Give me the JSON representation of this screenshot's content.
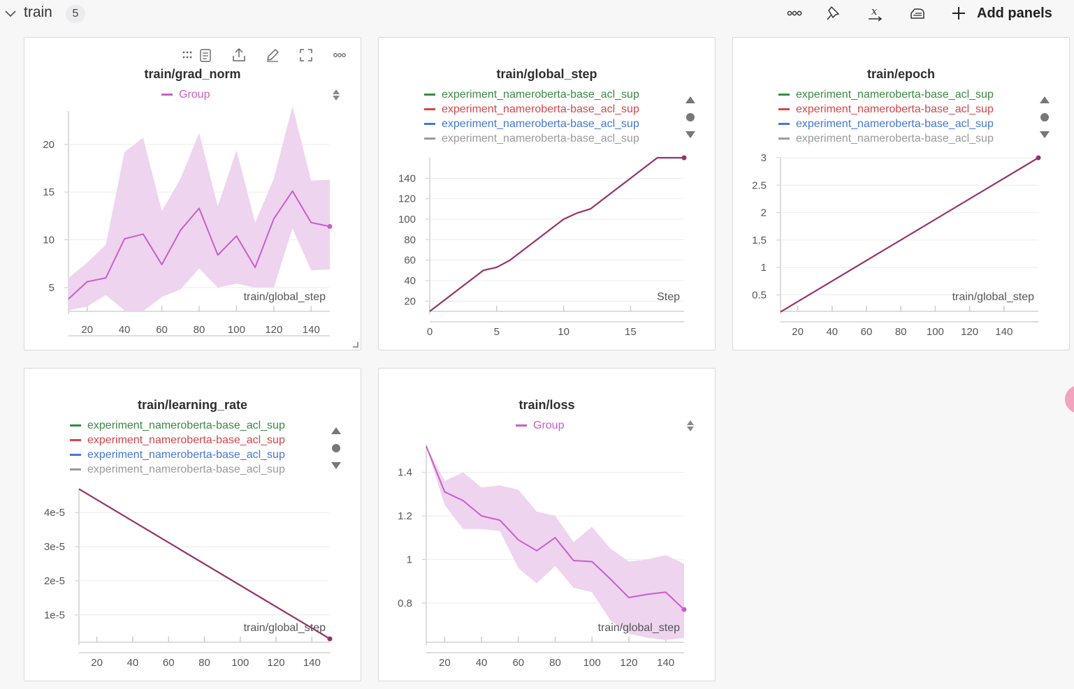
{
  "section": {
    "title": "train",
    "count": "5",
    "add_panels_label": "Add panels"
  },
  "icons": {
    "collapse": "chevron-down-icon",
    "toolbar": [
      "more-options-icon",
      "pin-icon",
      "x-variable-icon",
      "clean-icon",
      "plus-icon"
    ],
    "panel_tools": [
      "drag-handle-icon",
      "clipboard-icon",
      "share-icon",
      "edit-icon",
      "fullscreen-icon",
      "more-options-icon"
    ]
  },
  "colors": {
    "group": "#c95ec9",
    "group_band": "#eed4ef",
    "run_line": "#95336a",
    "legend_green": "#3a8a44",
    "legend_red": "#d6454b",
    "legend_blue": "#4477d6",
    "legend_gray": "#9a9a9a"
  },
  "legend_runs": [
    {
      "label": "experiment_nameroberta-base_acl_sup",
      "color": "#3a8a44"
    },
    {
      "label": "experiment_nameroberta-base_acl_sup",
      "color": "#d6454b"
    },
    {
      "label": "experiment_nameroberta-base_acl_sup",
      "color": "#4477d6"
    },
    {
      "label": "experiment_nameroberta-base_acl_sup",
      "color": "#9a9a9a"
    }
  ],
  "panels": [
    {
      "title": "train/grad_norm",
      "legend": [
        "Group"
      ]
    },
    {
      "title": "train/global_step",
      "legend": [
        "experiment_nameroberta-base_acl_sup",
        "experiment_nameroberta-base_acl_sup",
        "experiment_nameroberta-base_acl_sup",
        "experiment_nameroberta-base_acl_sup"
      ]
    },
    {
      "title": "train/epoch",
      "legend": [
        "experiment_nameroberta-base_acl_sup",
        "experiment_nameroberta-base_acl_sup",
        "experiment_nameroberta-base_acl_sup",
        "experiment_nameroberta-base_acl_sup"
      ]
    },
    {
      "title": "train/learning_rate",
      "legend": [
        "experiment_nameroberta-base_acl_sup",
        "experiment_nameroberta-base_acl_sup",
        "experiment_nameroberta-base_acl_sup",
        "experiment_nameroberta-base_acl_sup"
      ]
    },
    {
      "title": "train/loss",
      "legend": [
        "Group"
      ]
    }
  ],
  "chart_data": [
    {
      "type": "line",
      "title": "train/grad_norm",
      "xlabel": "train/global_step",
      "xlim": [
        10,
        150
      ],
      "ylim": [
        2.5,
        23.5
      ],
      "xticks": [
        20,
        40,
        60,
        80,
        100,
        120,
        140
      ],
      "yticks": [
        5,
        10,
        15,
        20
      ],
      "ytick_labels": [
        "5",
        "10",
        "15",
        "20"
      ],
      "band": true,
      "series": [
        {
          "name": "Group",
          "x": [
            10,
            20,
            30,
            40,
            50,
            60,
            70,
            80,
            90,
            100,
            110,
            120,
            130,
            140,
            150
          ],
          "y": [
            3.8,
            5.6,
            6.0,
            10.1,
            10.6,
            7.4,
            11.0,
            13.3,
            8.4,
            10.4,
            7.1,
            12.2,
            15.1,
            11.8,
            11.4
          ],
          "upper": [
            6.0,
            7.6,
            9.5,
            19.2,
            20.7,
            13.0,
            16.4,
            21.2,
            13.5,
            19.4,
            11.8,
            16.4,
            24.0,
            16.2,
            16.3
          ],
          "lower": [
            2.6,
            3.0,
            4.2,
            2.6,
            2.5,
            4.0,
            4.8,
            7.0,
            5.0,
            5.4,
            5.0,
            5.0,
            11.2,
            6.8,
            6.9
          ]
        }
      ]
    },
    {
      "type": "line",
      "title": "train/global_step",
      "xlabel": "Step",
      "xlim": [
        0,
        19
      ],
      "ylim": [
        10,
        160
      ],
      "xticks": [
        0,
        5,
        10,
        15
      ],
      "yticks": [
        20,
        40,
        60,
        80,
        100,
        120,
        140
      ],
      "ytick_labels": [
        "20",
        "40",
        "60",
        "80",
        "100",
        "120",
        "140"
      ],
      "band": false,
      "series": [
        {
          "name": "experiment_nameroberta-base_acl_sup",
          "x": [
            0,
            1,
            2,
            3,
            4,
            5,
            6,
            7,
            8,
            9,
            10,
            11,
            12,
            13,
            14,
            15,
            16,
            17,
            18,
            19
          ],
          "y": [
            10,
            20,
            30,
            40,
            50,
            53,
            60,
            70,
            80,
            90,
            100,
            106,
            110,
            120,
            130,
            140,
            150,
            160,
            160,
            160
          ]
        }
      ]
    },
    {
      "type": "line",
      "title": "train/epoch",
      "xlabel": "train/global_step",
      "xlim": [
        10,
        160
      ],
      "ylim": [
        0.2,
        3.0
      ],
      "xticks": [
        20,
        40,
        60,
        80,
        100,
        120,
        140
      ],
      "yticks": [
        0.5,
        1,
        1.5,
        2,
        2.5,
        3
      ],
      "ytick_labels": [
        "0.5",
        "1",
        "1.5",
        "2",
        "2.5",
        "3"
      ],
      "band": false,
      "series": [
        {
          "name": "experiment_nameroberta-base_acl_sup",
          "x": [
            10,
            160
          ],
          "y": [
            0.19,
            3.0
          ]
        }
      ]
    },
    {
      "type": "line",
      "title": "train/learning_rate",
      "xlabel": "train/global_step",
      "xlim": [
        10,
        150
      ],
      "ylim": [
        2e-06,
        4.7e-05
      ],
      "xticks": [
        20,
        40,
        60,
        80,
        100,
        120,
        140
      ],
      "yticks": [
        1e-05,
        2e-05,
        3e-05,
        4e-05
      ],
      "ytick_labels": [
        "1e-5",
        "2e-5",
        "3e-5",
        "4e-5"
      ],
      "band": false,
      "series": [
        {
          "name": "experiment_nameroberta-base_acl_sup",
          "x": [
            10,
            150
          ],
          "y": [
            4.69e-05,
            3e-06
          ]
        }
      ]
    },
    {
      "type": "line",
      "title": "train/loss",
      "xlabel": "train/global_step",
      "xlim": [
        10,
        150
      ],
      "ylim": [
        0.62,
        1.53
      ],
      "xticks": [
        20,
        40,
        60,
        80,
        100,
        120,
        140
      ],
      "yticks": [
        0.8,
        1,
        1.2,
        1.4
      ],
      "ytick_labels": [
        "0.8",
        "1",
        "1.2",
        "1.4"
      ],
      "band": true,
      "series": [
        {
          "name": "Group",
          "x": [
            10,
            20,
            30,
            40,
            50,
            60,
            70,
            80,
            90,
            100,
            110,
            120,
            130,
            140,
            150
          ],
          "y": [
            1.52,
            1.31,
            1.27,
            1.2,
            1.18,
            1.09,
            1.04,
            1.1,
            0.995,
            0.99,
            0.91,
            0.825,
            0.84,
            0.85,
            0.77
          ],
          "upper": [
            1.52,
            1.36,
            1.4,
            1.33,
            1.34,
            1.32,
            1.22,
            1.2,
            1.08,
            1.15,
            1.05,
            0.99,
            1.0,
            1.02,
            0.98
          ],
          "lower": [
            1.52,
            1.25,
            1.14,
            1.14,
            1.13,
            0.96,
            0.89,
            0.97,
            0.87,
            0.85,
            0.72,
            0.66,
            0.64,
            0.63,
            0.64
          ]
        }
      ]
    }
  ]
}
